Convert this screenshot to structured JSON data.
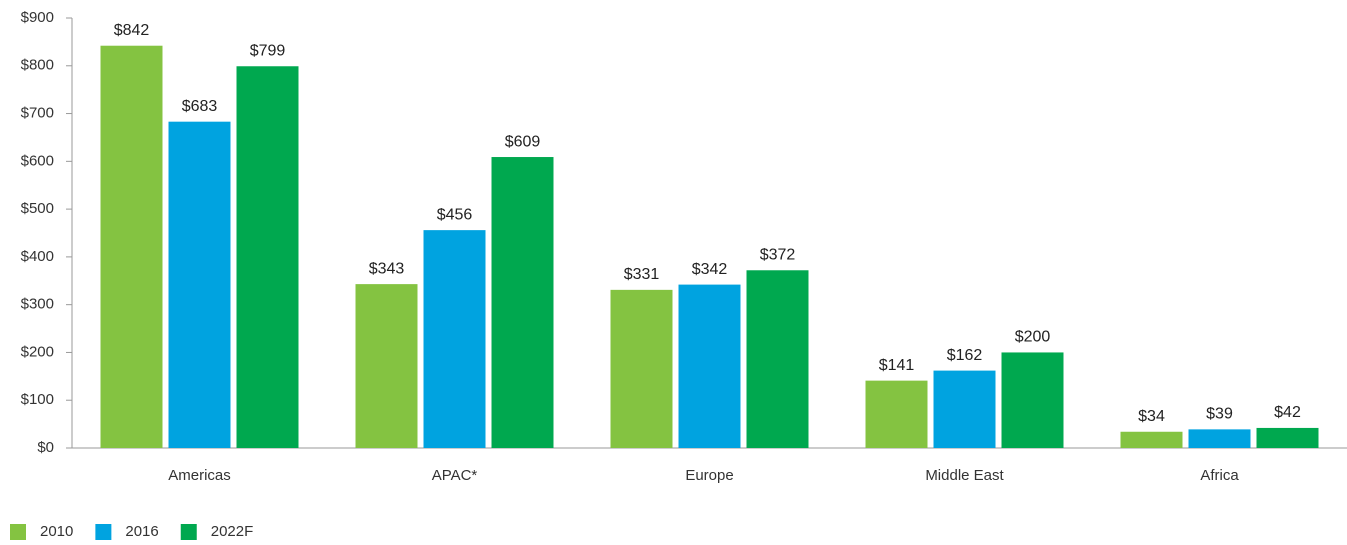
{
  "chart_data": {
    "type": "bar",
    "categories": [
      "Americas",
      "APAC*",
      "Europe",
      "Middle East",
      "Africa"
    ],
    "series": [
      {
        "name": "2010",
        "color": "#84c341",
        "values": [
          842,
          343,
          331,
          141,
          34
        ],
        "value_labels": [
          "$842",
          "$343",
          "$331",
          "$141",
          "$34"
        ]
      },
      {
        "name": "2016",
        "color": "#00a3e0",
        "values": [
          683,
          456,
          342,
          162,
          39
        ],
        "value_labels": [
          "$683",
          "$456",
          "$342",
          "$162",
          "$39"
        ]
      },
      {
        "name": "2022F",
        "color": "#00a84f",
        "values": [
          799,
          609,
          372,
          200,
          42
        ],
        "value_labels": [
          "$799",
          "$609",
          "$372",
          "$200",
          "$42"
        ]
      }
    ],
    "ylim": [
      0,
      900
    ],
    "yticks": [
      {
        "value": 0,
        "label": "$0"
      },
      {
        "value": 100,
        "label": "$100"
      },
      {
        "value": 200,
        "label": "$200"
      },
      {
        "value": 300,
        "label": "$300"
      },
      {
        "value": 400,
        "label": "$400"
      },
      {
        "value": 500,
        "label": "$500"
      },
      {
        "value": 600,
        "label": "$600"
      },
      {
        "value": 700,
        "label": "$700"
      },
      {
        "value": 800,
        "label": "$800"
      },
      {
        "value": 900,
        "label": "$900"
      }
    ],
    "grid": false,
    "legend": "bottom-left"
  }
}
